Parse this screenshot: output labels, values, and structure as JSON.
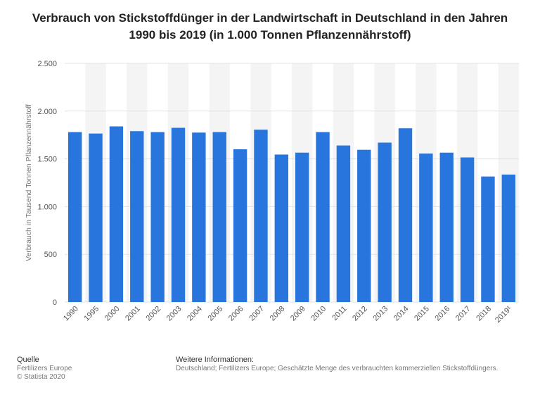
{
  "title_line1": "Verbrauch von Stickstoffdünger in der Landwirtschaft in Deutschland in den Jahren",
  "title_line2": "1990 bis 2019 (in 1.000 Tonnen Pflanzennährstoff)",
  "colors": {
    "bar": "#2876dd",
    "stripe": "#f4f4f4",
    "grid": "#e3e3e3",
    "axis_text": "#555555"
  },
  "chart_data": {
    "type": "bar",
    "title": "Verbrauch von Stickstoffdünger in der Landwirtschaft in Deutschland in den Jahren 1990 bis 2019 (in 1.000 Tonnen Pflanzennährstoff)",
    "xlabel": "",
    "ylabel": "Verbrauch in Tausend Tonnen Pflanzennährstoff",
    "categories": [
      "1990",
      "1995",
      "2000",
      "2001",
      "2002",
      "2003",
      "2004",
      "2005",
      "2006",
      "2007",
      "2008",
      "2009",
      "2010",
      "2011",
      "2012",
      "2013",
      "2014",
      "2015",
      "2016",
      "2017",
      "2018",
      "2019¹"
    ],
    "values": [
      1780,
      1765,
      1840,
      1790,
      1780,
      1825,
      1775,
      1780,
      1600,
      1805,
      1545,
      1565,
      1780,
      1640,
      1595,
      1670,
      1820,
      1555,
      1565,
      1515,
      1315,
      1335
    ],
    "ylim": [
      0,
      2500
    ],
    "yticks": [
      0,
      500,
      1000,
      1500,
      2000,
      2500
    ],
    "ytick_labels": [
      "0",
      "500",
      "1.000",
      "1.500",
      "2.000",
      "2.500"
    ],
    "grid": true
  },
  "footer": {
    "source_heading": "Quelle",
    "source_lines": [
      "Fertilizers Europe",
      "© Statista 2020"
    ],
    "info_heading": "Weitere Informationen:",
    "info_text": "Deutschland; Fertilizers Europe; Geschätzte Menge des verbrauchten kommerziellen Stickstoffdüngers."
  }
}
